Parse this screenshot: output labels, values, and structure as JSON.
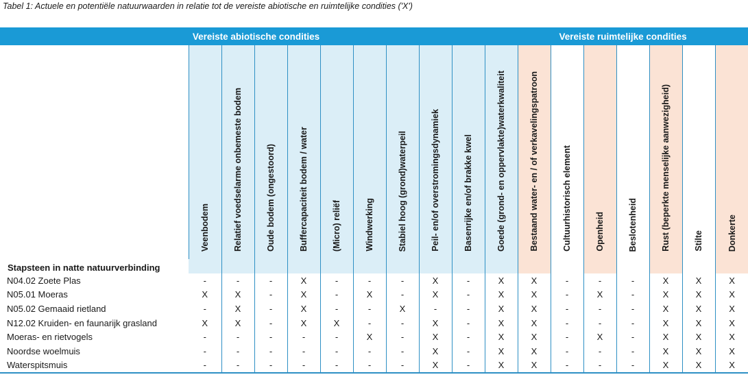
{
  "caption": "Tabel 1: Actuele en potentiële natuurwaarden in relatie tot de vereiste abiotische en ruimtelijke condities ('X')",
  "header": {
    "abiotic_title": "Vereiste abiotische condities",
    "spatial_title": "Vereiste ruimtelijke condities"
  },
  "columns": [
    "Veenbodem",
    "Relatief voedselarme onbemeste bodem",
    "Oude bodem (ongestoord)",
    "Buffercapaciteit bodem / water",
    "(Micro) reliëf",
    "Windwerking",
    "Stabiel hoog (grond)waterpeil",
    "Peil- en/of overstromingsdynamiek",
    "Basenrijke en/of brakke kwel",
    "Goede (grond- en oppervlakte)waterkwaliteit",
    "Bestaand water- en / of verkavelingspatroon",
    "Cultuurhistorisch element",
    "Openheid",
    "Beslotenheid",
    "Rust (beperkte menselijke aanwezigheid)",
    "Stilte",
    "Donkerte"
  ],
  "section_label": "Stapsteen in natte natuurverbinding",
  "rows": [
    {
      "name": "N04.02 Zoete Plas",
      "cells": [
        "-",
        "-",
        "-",
        "X",
        "-",
        "-",
        "-",
        "X",
        "-",
        "X",
        "X",
        "-",
        "-",
        "-",
        "X",
        "X",
        "X"
      ]
    },
    {
      "name": "N05.01 Moeras",
      "cells": [
        "X",
        "X",
        "-",
        "X",
        "-",
        "X",
        "-",
        "X",
        "-",
        "X",
        "X",
        "-",
        "X",
        "-",
        "X",
        "X",
        "X"
      ]
    },
    {
      "name": "N05.02 Gemaaid rietland",
      "cells": [
        "-",
        "X",
        "-",
        "X",
        "-",
        "-",
        "X",
        "-",
        "-",
        "X",
        "X",
        "-",
        "-",
        "-",
        "X",
        "X",
        "X"
      ]
    },
    {
      "name": "N12.02 Kruiden- en faunarijk grasland",
      "cells": [
        "X",
        "X",
        "-",
        "X",
        "X",
        "-",
        "-",
        "X",
        "-",
        "X",
        "X",
        "-",
        "-",
        "-",
        "X",
        "X",
        "X"
      ]
    },
    {
      "name": "Moeras- en rietvogels",
      "cells": [
        "-",
        "-",
        "-",
        "-",
        "-",
        "X",
        "-",
        "X",
        "-",
        "X",
        "X",
        "-",
        "X",
        "-",
        "X",
        "X",
        "X"
      ]
    },
    {
      "name": "Noordse woelmuis",
      "cells": [
        "-",
        "-",
        "-",
        "-",
        "-",
        "-",
        "-",
        "X",
        "-",
        "X",
        "X",
        "-",
        "-",
        "-",
        "X",
        "X",
        "X"
      ]
    },
    {
      "name": "Waterspitsmuis",
      "cells": [
        "-",
        "-",
        "-",
        "-",
        "-",
        "-",
        "-",
        "X",
        "-",
        "X",
        "X",
        "-",
        "-",
        "-",
        "X",
        "X",
        "X"
      ]
    }
  ],
  "colors": {
    "header_bar": "#1a9ad6",
    "abiotic_bg": "#dbeef7",
    "spatial_bg": "#fbe3d5",
    "rule": "#2d8fc4"
  }
}
